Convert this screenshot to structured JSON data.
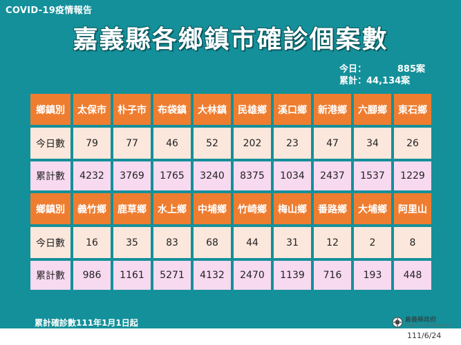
{
  "header_label": "COVID-19疫情報告",
  "title": "嘉義縣各鄉鎮市確診個案數",
  "summary": {
    "today_label": "今日：",
    "today_value": "885案",
    "total_label": "累計：",
    "total_value": "44,134案"
  },
  "table": {
    "row_labels": {
      "town": "鄉鎮別",
      "today": "今日數",
      "total": "累計數"
    },
    "group1": {
      "towns": [
        "太保市",
        "朴子市",
        "布袋鎮",
        "大林鎮",
        "民雄鄉",
        "溪口鄉",
        "新港鄉",
        "六腳鄉",
        "東石鄉"
      ],
      "today": [
        "79",
        "77",
        "46",
        "52",
        "202",
        "23",
        "47",
        "34",
        "26"
      ],
      "total": [
        "4232",
        "3769",
        "1765",
        "3240",
        "8375",
        "1034",
        "2437",
        "1537",
        "1229"
      ]
    },
    "group2": {
      "towns": [
        "義竹鄉",
        "鹿草鄉",
        "水上鄉",
        "中埔鄉",
        "竹崎鄉",
        "梅山鄉",
        "番路鄉",
        "大埔鄉",
        "阿里山"
      ],
      "today": [
        "16",
        "35",
        "83",
        "68",
        "44",
        "31",
        "12",
        "2",
        "8"
      ],
      "total": [
        "986",
        "1161",
        "5271",
        "4132",
        "2470",
        "1139",
        "716",
        "193",
        "448"
      ]
    }
  },
  "footer_note": "累計確診數111年1月1日起",
  "logo": {
    "name": "嘉義縣政府",
    "sub": "Chiayi County Government"
  },
  "date": "111/6/24",
  "colors": {
    "background": "#14909a",
    "header_cells": "#ef7d30",
    "today_cells": "#fbe7dc",
    "total_cells": "#f7d9f0"
  }
}
